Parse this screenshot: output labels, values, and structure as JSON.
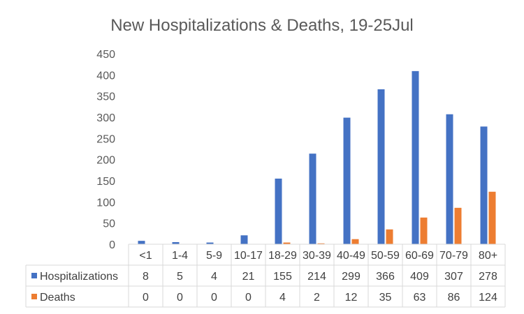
{
  "chart_data": {
    "type": "bar",
    "title": "New Hospitalizations & Deaths, 19-25Jul",
    "categories": [
      "<1",
      "1-4",
      "5-9",
      "10-17",
      "18-29",
      "30-39",
      "40-49",
      "50-59",
      "60-69",
      "70-79",
      "80+"
    ],
    "series": [
      {
        "name": "Hospitalizations",
        "color": "#4472C4",
        "values": [
          8,
          5,
          4,
          21,
          155,
          214,
          299,
          366,
          409,
          307,
          278
        ]
      },
      {
        "name": "Deaths",
        "color": "#ED7D31",
        "values": [
          0,
          0,
          0,
          0,
          4,
          2,
          12,
          35,
          63,
          86,
          124
        ]
      }
    ],
    "ylim": [
      0,
      450
    ],
    "yticks": [
      0,
      50,
      100,
      150,
      200,
      250,
      300,
      350,
      400,
      450
    ],
    "grid": false,
    "legend": "data-table"
  }
}
